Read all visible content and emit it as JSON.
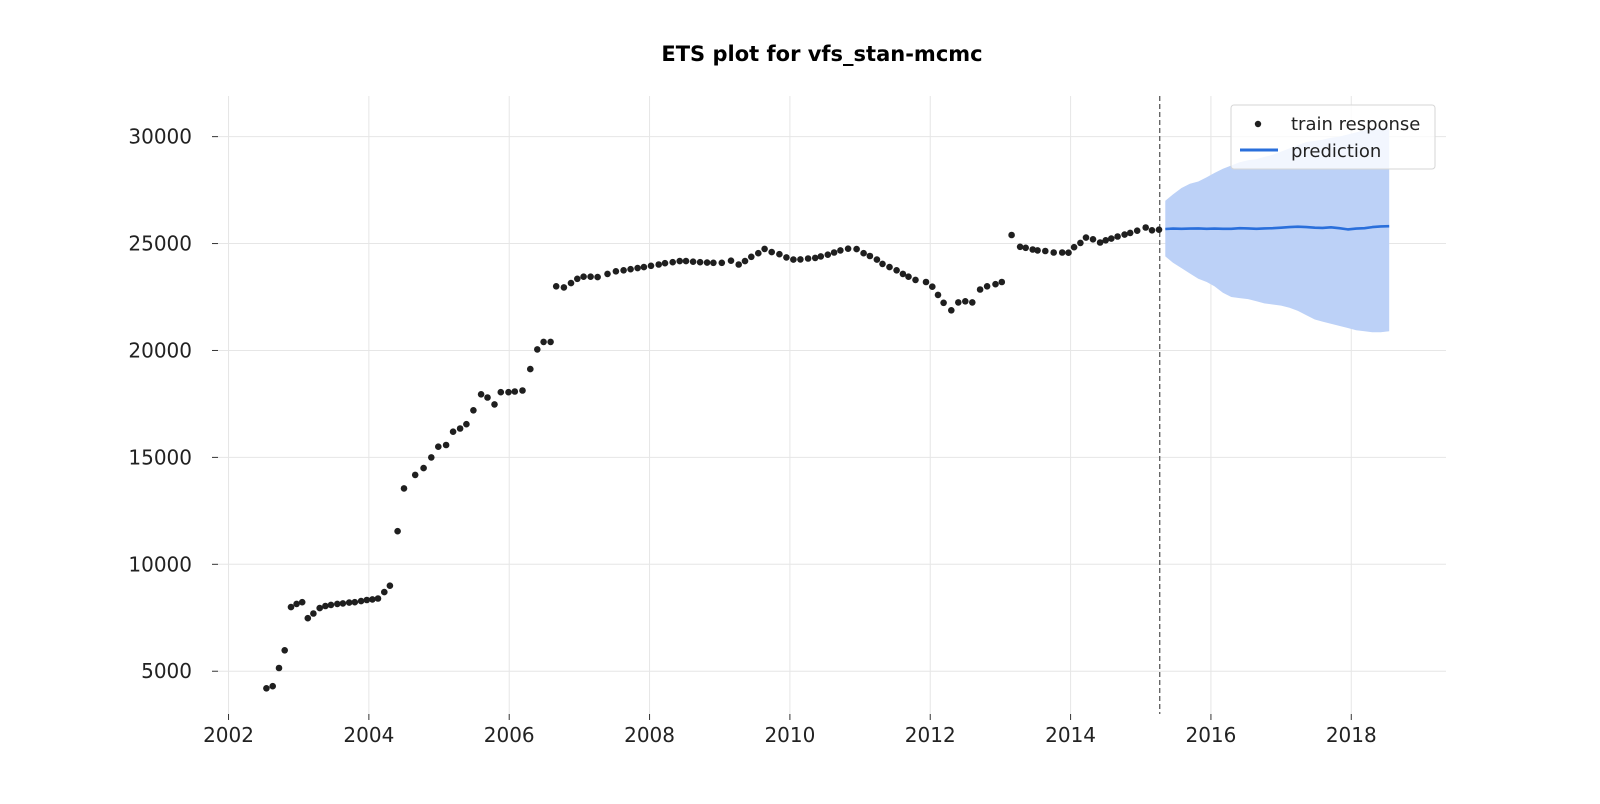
{
  "chart_data": {
    "type": "scatter",
    "title": "ETS plot for vfs_stan-mcmc",
    "xlabel": "",
    "ylabel": "",
    "x_is_date": true,
    "xlim": [
      2001.85,
      2019.35
    ],
    "ylim": [
      3000,
      31900
    ],
    "xticks": [
      2002,
      2004,
      2006,
      2008,
      2010,
      2012,
      2014,
      2016,
      2018
    ],
    "xtick_labels": [
      "2002",
      "2004",
      "2006",
      "2008",
      "2010",
      "2012",
      "2014",
      "2016",
      "2018"
    ],
    "yticks": [
      5000,
      10000,
      15000,
      20000,
      25000,
      30000
    ],
    "ytick_labels": [
      "5000",
      "10000",
      "15000",
      "20000",
      "25000",
      "30000"
    ],
    "grid": true,
    "legend_position": "top-right",
    "train_cutoff": 2015.27,
    "colors": {
      "train": "#1f1f1f",
      "prediction": "#2a6fdb",
      "interval": "#bcd1f7",
      "cutoff": "#666666",
      "grid": "#e6e6e6"
    },
    "series": [
      {
        "name": "train response",
        "kind": "scatter",
        "points": [
          [
            2002.54,
            4200
          ],
          [
            2002.63,
            4300
          ],
          [
            2002.72,
            5150
          ],
          [
            2002.8,
            5980
          ],
          [
            2002.89,
            8000
          ],
          [
            2002.97,
            8150
          ],
          [
            2003.05,
            8230
          ],
          [
            2003.13,
            7480
          ],
          [
            2003.21,
            7700
          ],
          [
            2003.3,
            7950
          ],
          [
            2003.38,
            8050
          ],
          [
            2003.46,
            8100
          ],
          [
            2003.55,
            8150
          ],
          [
            2003.63,
            8170
          ],
          [
            2003.72,
            8210
          ],
          [
            2003.8,
            8230
          ],
          [
            2003.89,
            8280
          ],
          [
            2003.97,
            8330
          ],
          [
            2004.05,
            8360
          ],
          [
            2004.13,
            8400
          ],
          [
            2004.22,
            8700
          ],
          [
            2004.3,
            9000
          ],
          [
            2004.41,
            11550
          ],
          [
            2004.5,
            13550
          ],
          [
            2004.66,
            14180
          ],
          [
            2004.78,
            14500
          ],
          [
            2004.89,
            15000
          ],
          [
            2004.99,
            15500
          ],
          [
            2005.1,
            15580
          ],
          [
            2005.2,
            16200
          ],
          [
            2005.3,
            16350
          ],
          [
            2005.39,
            16550
          ],
          [
            2005.49,
            17200
          ],
          [
            2005.6,
            17950
          ],
          [
            2005.69,
            17800
          ],
          [
            2005.79,
            17480
          ],
          [
            2005.88,
            18050
          ],
          [
            2005.99,
            18050
          ],
          [
            2006.08,
            18080
          ],
          [
            2006.19,
            18130
          ],
          [
            2006.3,
            19130
          ],
          [
            2006.4,
            20050
          ],
          [
            2006.49,
            20400
          ],
          [
            2006.59,
            20400
          ],
          [
            2006.67,
            23000
          ],
          [
            2006.78,
            22950
          ],
          [
            2006.88,
            23150
          ],
          [
            2006.97,
            23350
          ],
          [
            2007.06,
            23450
          ],
          [
            2007.16,
            23450
          ],
          [
            2007.26,
            23430
          ],
          [
            2007.4,
            23580
          ],
          [
            2007.52,
            23700
          ],
          [
            2007.63,
            23750
          ],
          [
            2007.73,
            23800
          ],
          [
            2007.83,
            23850
          ],
          [
            2007.92,
            23900
          ],
          [
            2008.02,
            23960
          ],
          [
            2008.13,
            24020
          ],
          [
            2008.22,
            24080
          ],
          [
            2008.33,
            24130
          ],
          [
            2008.43,
            24180
          ],
          [
            2008.52,
            24180
          ],
          [
            2008.62,
            24150
          ],
          [
            2008.72,
            24130
          ],
          [
            2008.82,
            24110
          ],
          [
            2008.91,
            24100
          ],
          [
            2009.03,
            24100
          ],
          [
            2009.16,
            24200
          ],
          [
            2009.27,
            24020
          ],
          [
            2009.36,
            24180
          ],
          [
            2009.45,
            24380
          ],
          [
            2009.55,
            24550
          ],
          [
            2009.64,
            24750
          ],
          [
            2009.74,
            24600
          ],
          [
            2009.85,
            24500
          ],
          [
            2009.95,
            24350
          ],
          [
            2010.05,
            24250
          ],
          [
            2010.15,
            24260
          ],
          [
            2010.26,
            24300
          ],
          [
            2010.36,
            24330
          ],
          [
            2010.44,
            24400
          ],
          [
            2010.54,
            24480
          ],
          [
            2010.63,
            24580
          ],
          [
            2010.72,
            24680
          ],
          [
            2010.83,
            24760
          ],
          [
            2010.95,
            24740
          ],
          [
            2011.05,
            24550
          ],
          [
            2011.14,
            24420
          ],
          [
            2011.24,
            24250
          ],
          [
            2011.32,
            24050
          ],
          [
            2011.42,
            23900
          ],
          [
            2011.52,
            23750
          ],
          [
            2011.61,
            23580
          ],
          [
            2011.69,
            23450
          ],
          [
            2011.79,
            23300
          ],
          [
            2011.94,
            23200
          ],
          [
            2012.03,
            22980
          ],
          [
            2012.11,
            22600
          ],
          [
            2012.19,
            22230
          ],
          [
            2012.3,
            21880
          ],
          [
            2012.4,
            22250
          ],
          [
            2012.5,
            22300
          ],
          [
            2012.6,
            22250
          ],
          [
            2012.71,
            22850
          ],
          [
            2012.81,
            23000
          ],
          [
            2012.93,
            23100
          ],
          [
            2013.02,
            23200
          ],
          [
            2013.16,
            25400
          ],
          [
            2013.28,
            24850
          ],
          [
            2013.36,
            24800
          ],
          [
            2013.46,
            24720
          ],
          [
            2013.53,
            24680
          ],
          [
            2013.64,
            24650
          ],
          [
            2013.76,
            24580
          ],
          [
            2013.88,
            24580
          ],
          [
            2013.97,
            24570
          ],
          [
            2014.05,
            24830
          ],
          [
            2014.14,
            25030
          ],
          [
            2014.22,
            25280
          ],
          [
            2014.32,
            25200
          ],
          [
            2014.42,
            25050
          ],
          [
            2014.5,
            25150
          ],
          [
            2014.58,
            25230
          ],
          [
            2014.67,
            25330
          ],
          [
            2014.77,
            25420
          ],
          [
            2014.85,
            25500
          ],
          [
            2014.95,
            25600
          ],
          [
            2015.07,
            25750
          ],
          [
            2015.16,
            25620
          ],
          [
            2015.26,
            25650
          ]
        ]
      },
      {
        "name": "prediction",
        "kind": "line",
        "points": [
          [
            2015.35,
            25680
          ],
          [
            2015.46,
            25700
          ],
          [
            2015.58,
            25690
          ],
          [
            2015.7,
            25700
          ],
          [
            2015.82,
            25710
          ],
          [
            2015.94,
            25690
          ],
          [
            2016.05,
            25700
          ],
          [
            2016.17,
            25690
          ],
          [
            2016.29,
            25690
          ],
          [
            2016.41,
            25720
          ],
          [
            2016.53,
            25710
          ],
          [
            2016.65,
            25690
          ],
          [
            2016.76,
            25710
          ],
          [
            2016.88,
            25720
          ],
          [
            2017.0,
            25740
          ],
          [
            2017.12,
            25770
          ],
          [
            2017.24,
            25790
          ],
          [
            2017.36,
            25770
          ],
          [
            2017.48,
            25740
          ],
          [
            2017.59,
            25730
          ],
          [
            2017.71,
            25760
          ],
          [
            2017.83,
            25720
          ],
          [
            2017.95,
            25660
          ],
          [
            2018.07,
            25700
          ],
          [
            2018.19,
            25720
          ],
          [
            2018.3,
            25770
          ],
          [
            2018.42,
            25800
          ],
          [
            2018.54,
            25810
          ]
        ]
      }
    ],
    "prediction_interval": {
      "x": [
        2015.35,
        2015.46,
        2015.58,
        2015.7,
        2015.82,
        2015.94,
        2016.05,
        2016.17,
        2016.29,
        2016.41,
        2016.53,
        2016.65,
        2016.76,
        2016.88,
        2017.0,
        2017.12,
        2017.24,
        2017.36,
        2017.48,
        2017.59,
        2017.71,
        2017.83,
        2017.95,
        2018.07,
        2018.19,
        2018.3,
        2018.42,
        2018.54
      ],
      "upper": [
        27000,
        27300,
        27600,
        27800,
        27900,
        28100,
        28300,
        28500,
        28650,
        28800,
        28900,
        28950,
        29050,
        29150,
        29300,
        29450,
        29600,
        29750,
        29800,
        29850,
        29950,
        30000,
        30100,
        30200,
        30300,
        30350,
        30400,
        30450
      ],
      "lower": [
        24400,
        24100,
        23850,
        23600,
        23350,
        23200,
        23000,
        22700,
        22500,
        22450,
        22400,
        22300,
        22200,
        22150,
        22100,
        22000,
        21850,
        21650,
        21450,
        21350,
        21250,
        21150,
        21050,
        20950,
        20900,
        20850,
        20850,
        20900
      ]
    }
  }
}
